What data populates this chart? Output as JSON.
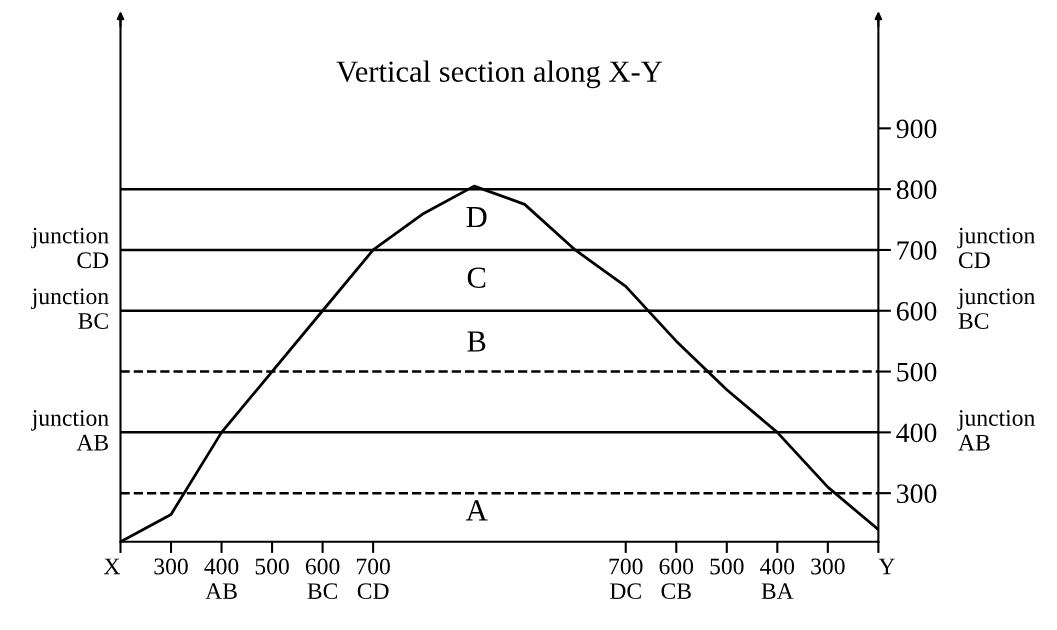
{
  "chart_data": {
    "type": "line",
    "title": "Vertical section along X-Y",
    "categories": [
      "X",
      "300",
      "400\nAB",
      "500",
      "600\nBC",
      "700\nCD",
      null,
      null,
      null,
      null,
      "700\nDC",
      "600\nCB",
      "500",
      "400\nBA",
      "300",
      "Y"
    ],
    "series": [
      {
        "color": "#000000",
        "values": [
          220,
          265,
          400,
          500,
          600,
          700,
          760,
          805,
          775,
          700,
          640,
          550,
          470,
          400,
          310,
          240
        ]
      }
    ],
    "ylim": [
      220,
      1080
    ],
    "yticks": [
      300,
      400,
      500,
      600,
      700,
      800,
      900
    ],
    "ref_lines": [
      {
        "axis": "y",
        "value": 800
      },
      {
        "axis": "y",
        "value": 700,
        "label": "junction\nCD"
      },
      {
        "axis": "y",
        "value": 600,
        "label": "junction\nBC"
      },
      {
        "axis": "y",
        "value": 500,
        "line_style": "dashed"
      },
      {
        "axis": "y",
        "value": 400,
        "label": "junction\nAB"
      },
      {
        "axis": "y",
        "value": 300,
        "line_style": "dashed"
      }
    ],
    "annotations": [
      "D",
      "C",
      "B",
      "A"
    ],
    "grid": false,
    "legend": false,
    "marker": "none",
    "line_style": "solid"
  }
}
